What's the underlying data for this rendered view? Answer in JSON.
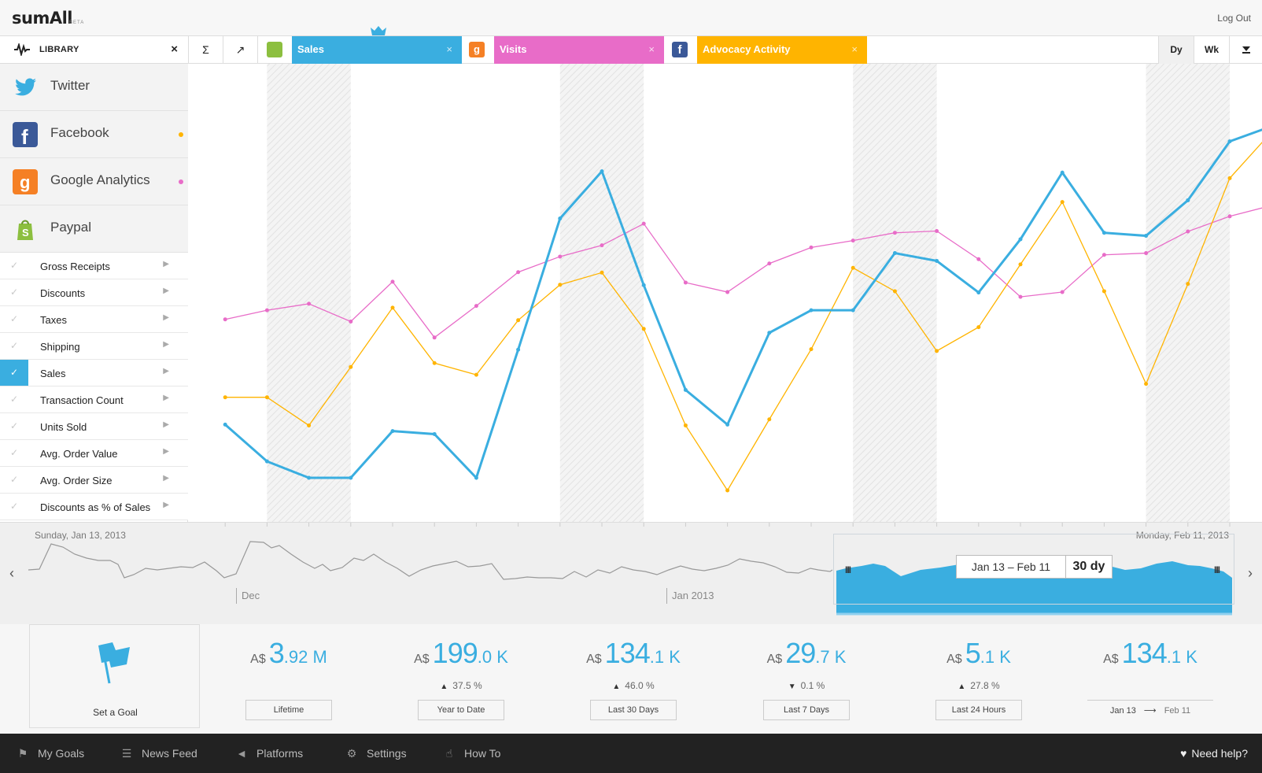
{
  "app": {
    "logo": "sumAll",
    "beta": "BETA",
    "logout": "Log Out"
  },
  "toolbar": {
    "library_label": "LIBRARY",
    "sum_icon": "Σ",
    "trend_icon": "↗",
    "tabs": [
      {
        "label": "Sales",
        "color": "#3aaee0",
        "icon": "shopify-icon"
      },
      {
        "label": "Visits",
        "color": "#e86cc8",
        "icon": "google-analytics-icon"
      },
      {
        "label": "Advocacy Activity",
        "color": "#ffb400",
        "icon": "facebook-icon"
      }
    ],
    "day_label": "Dy",
    "week_label": "Wk"
  },
  "sidebar": {
    "platforms": [
      {
        "name": "Twitter",
        "dot_color": ""
      },
      {
        "name": "Facebook",
        "dot_color": "#ffb400"
      },
      {
        "name": "Google Analytics",
        "dot_color": "#e86cc8"
      },
      {
        "name": "Paypal",
        "dot_color": ""
      }
    ],
    "metrics": [
      {
        "label": "Gross Receipts",
        "checked": false
      },
      {
        "label": "Discounts",
        "checked": false
      },
      {
        "label": "Taxes",
        "checked": false
      },
      {
        "label": "Shipping",
        "checked": false
      },
      {
        "label": "Sales",
        "checked": true
      },
      {
        "label": "Transaction Count",
        "checked": false
      },
      {
        "label": "Units Sold",
        "checked": false
      },
      {
        "label": "Avg. Order Value",
        "checked": false
      },
      {
        "label": "Avg. Order Size",
        "checked": false
      },
      {
        "label": "Discounts as % of Sales",
        "checked": false
      }
    ]
  },
  "chart_data": {
    "type": "line",
    "x_count": 27,
    "ylim": [
      0,
      100
    ],
    "shaded_bands": [
      [
        2,
        4
      ],
      [
        9,
        11
      ],
      [
        16,
        18
      ],
      [
        23,
        25
      ]
    ],
    "series": [
      {
        "color": "#3aaee0",
        "values": [
          20.3,
          11.8,
          8,
          8,
          18.8,
          18.1,
          8,
          37.6,
          67.9,
          78.8,
          52.5,
          28.3,
          20.3,
          41.5,
          46.7,
          46.7,
          59.9,
          58.1,
          50.8,
          63.1,
          78.5,
          64.6,
          63.9,
          72.1,
          85.7,
          89.2
        ]
      },
      {
        "color": "#ffb400",
        "values": [
          26.6,
          26.6,
          20.1,
          33.6,
          47.3,
          34.5,
          31.8,
          44.4,
          52.6,
          55.4,
          42.4,
          20.1,
          5.1,
          21.5,
          37.7,
          56.5,
          51.1,
          37.3,
          42.8,
          57.3,
          71.7,
          51.1,
          29.7,
          52.8,
          77.2,
          87.9
        ]
      },
      {
        "color": "#e86cc8",
        "values": [
          44.6,
          46.7,
          48.2,
          44.1,
          53.3,
          40.4,
          47.7,
          55.5,
          59.1,
          61.7,
          66.7,
          53.1,
          50.9,
          57.5,
          61.2,
          62.8,
          64.6,
          65,
          58.5,
          49.8,
          50.9,
          59.5,
          59.9,
          64.9,
          68.4,
          70.9
        ]
      }
    ]
  },
  "timeline": {
    "start_date": "Sunday, Jan 13, 2013",
    "end_date": "Monday, Feb 11, 2013",
    "month_labels": [
      "Dec",
      "Jan 2013"
    ],
    "range_label": "Jan 13 – Feb 11",
    "range_days": "30 dy",
    "handle_glyph": "III"
  },
  "stats": {
    "goal_label": "Set a Goal",
    "items": [
      {
        "currency": "A$",
        "big": "3",
        "dec": ".92 M",
        "change": "",
        "direction": "",
        "label": "Lifetime"
      },
      {
        "currency": "A$",
        "big": "199",
        "dec": ".0 K",
        "change": "37.5 %",
        "direction": "▲",
        "label": "Year to Date"
      },
      {
        "currency": "A$",
        "big": "134",
        "dec": ".1 K",
        "change": "46.0 %",
        "direction": "▲",
        "label": "Last 30 Days"
      },
      {
        "currency": "A$",
        "big": "29",
        "dec": ".7 K",
        "change": "0.1 %",
        "direction": "▼",
        "label": "Last 7 Days"
      },
      {
        "currency": "A$",
        "big": "5",
        "dec": ".1 K",
        "change": "27.8 %",
        "direction": "▲",
        "label": "Last 24 Hours"
      },
      {
        "currency": "A$",
        "big": "134",
        "dec": ".1 K",
        "change": "",
        "direction": "",
        "range_from": "Jan 13",
        "range_to": "Feb 11"
      }
    ]
  },
  "footer": {
    "items": [
      {
        "label": "My Goals",
        "icon": "flag-icon"
      },
      {
        "label": "News Feed",
        "icon": "list-icon"
      },
      {
        "label": "Platforms",
        "icon": "megaphone-icon"
      },
      {
        "label": "Settings",
        "icon": "gear-icon"
      },
      {
        "label": "How To",
        "icon": "hand-icon"
      }
    ],
    "help": "Need help?"
  }
}
